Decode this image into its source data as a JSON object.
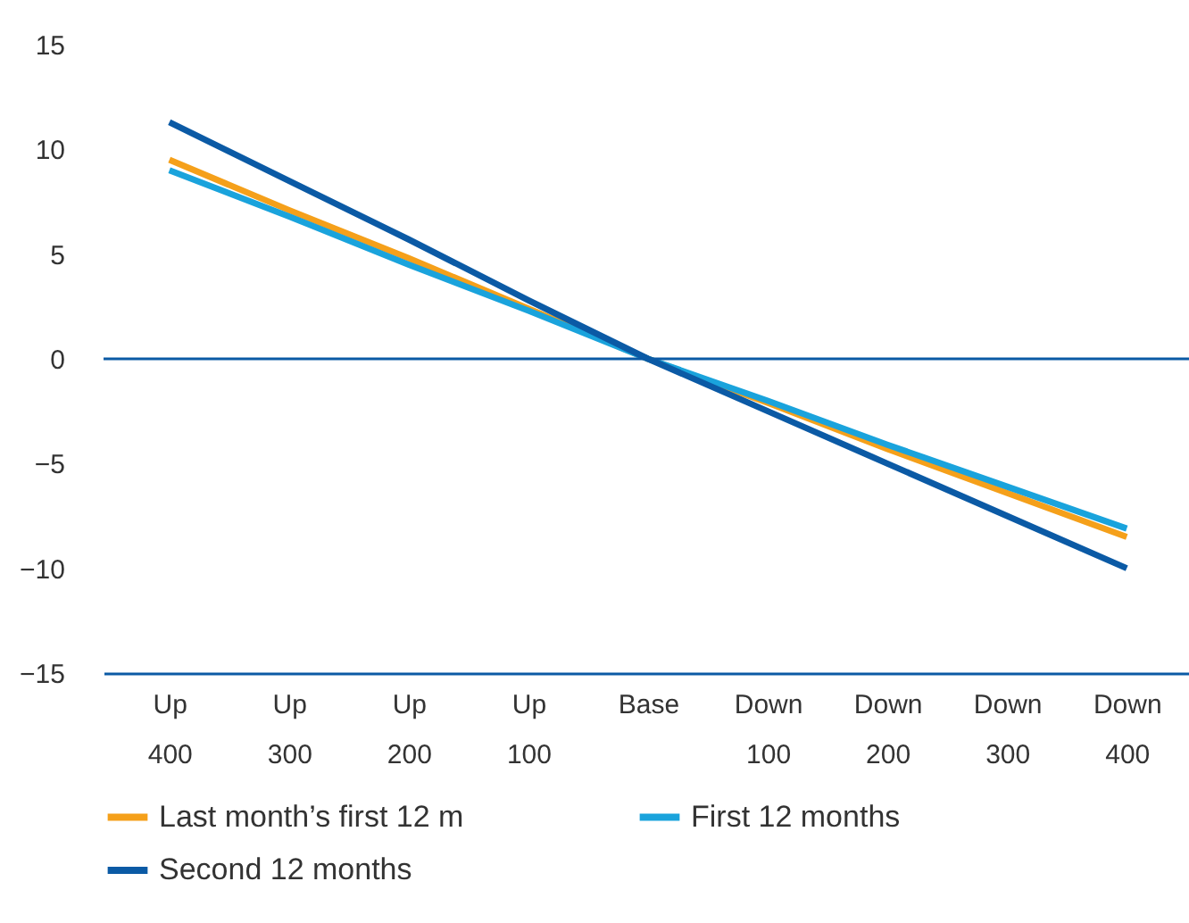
{
  "chart_data": {
    "type": "line",
    "categories": [
      "Up 400",
      "Up 300",
      "Up 200",
      "Up 100",
      "Base",
      "Down 100",
      "Down 200",
      "Down 300",
      "Down 400"
    ],
    "ylim": [
      -15,
      15
    ],
    "yticks": [
      -15,
      -10,
      -5,
      0,
      5,
      10,
      15
    ],
    "grid": false,
    "legend": "bottom",
    "marker": "none",
    "series": [
      {
        "name": "Last month’s first 12 m",
        "color": "#f5a01a",
        "values": [
          9.5,
          7.1,
          4.8,
          2.4,
          0,
          -2.1,
          -4.3,
          -6.4,
          -8.5
        ]
      },
      {
        "name": "First 12 months",
        "color": "#1aa3dc",
        "values": [
          9.0,
          6.8,
          4.5,
          2.3,
          0,
          -2.0,
          -4.1,
          -6.1,
          -8.1
        ]
      },
      {
        "name": "Second 12 months",
        "color": "#0b5aa5",
        "values": [
          11.3,
          8.5,
          5.7,
          2.8,
          0,
          -2.5,
          -5.0,
          -7.5,
          -10.0
        ]
      }
    ],
    "ref_lines": [
      {
        "axis": "y",
        "value": 0,
        "color": "#0b5aa5"
      }
    ]
  }
}
